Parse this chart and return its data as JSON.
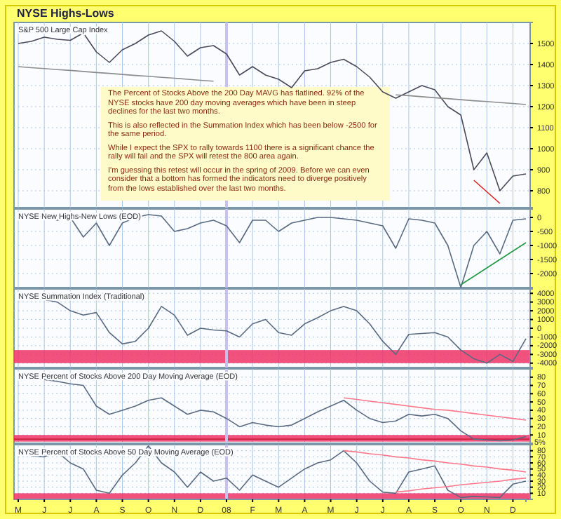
{
  "chart_data": [
    {
      "type": "line",
      "title": "NYSE Highs-Lows",
      "subtitle": "S&P 500 Large Cap Index",
      "categories": [
        null,
        null,
        null,
        null,
        null,
        null,
        null,
        null,
        null,
        null,
        null,
        null,
        null,
        null,
        null,
        null,
        null,
        null,
        null,
        null,
        null,
        null,
        null,
        null,
        null,
        null,
        null,
        null,
        null,
        null,
        null,
        null,
        null,
        null,
        null,
        null,
        null,
        null,
        null,
        null
      ],
      "ylim": [
        720,
        1600
      ],
      "yticks": [
        800,
        900,
        1000,
        1100,
        1200,
        1300,
        1400,
        1500
      ],
      "tick_labels": "y",
      "grid": true,
      "series": [
        {
          "color": "#4a4a5a",
          "values": [
            1500,
            1510,
            1530,
            1520,
            1515,
            1550,
            1460,
            1410,
            1470,
            1500,
            1540,
            1560,
            1510,
            1440,
            1480,
            1490,
            1450,
            1350,
            1390,
            1350,
            1330,
            1290,
            1370,
            1380,
            1410,
            1425,
            1390,
            1340,
            1270,
            1240,
            1270,
            1300,
            1280,
            1200,
            1160,
            900,
            980,
            800,
            870,
            880
          ]
        },
        {
          "color": "#8c8c8c",
          "values": [
            1390,
            1385,
            1381,
            1376,
            1372,
            1367,
            1362,
            1358,
            1353,
            1348,
            1344,
            1339,
            1335,
            1330,
            1325,
            1321,
            null,
            null,
            null,
            null,
            null,
            null,
            null,
            null,
            null,
            null,
            null,
            null,
            null,
            1256,
            1252,
            1247,
            1242,
            1238,
            1233,
            1228,
            1224,
            1219,
            1215,
            1210
          ]
        },
        {
          "color": "#dd2222",
          "values": [
            null,
            null,
            null,
            null,
            null,
            null,
            null,
            null,
            null,
            null,
            null,
            null,
            null,
            null,
            null,
            null,
            null,
            null,
            null,
            null,
            null,
            null,
            null,
            null,
            null,
            null,
            null,
            null,
            null,
            null,
            null,
            null,
            null,
            null,
            null,
            850,
            795,
            740,
            null,
            null
          ]
        }
      ],
      "annotations": [
        "The Percent of Stocks Above the 200 Day MAVG has flatlined. 92% of the NYSE stocks have 200 day moving averages which have been in steep declines for the last two months.",
        "This is also reflected in the Summation Index which has been below -2500 for the same period.",
        "While I expect the SPX to rally towards 1100 there is a significant chance the rally will fail and the SPX will retest the 800 area again.",
        "I'm guessing this retest will occur in the spring of 2009. Before we can even consider that a bottom has formed the indicators need to diverge positively from the lows established over the last two months."
      ]
    },
    {
      "type": "line",
      "title": "NYSE New Highs-New Lows (EOD)",
      "categories": [
        null,
        null,
        null,
        null,
        null,
        null,
        null,
        null,
        null,
        null,
        null,
        null,
        null,
        null,
        null,
        null,
        null,
        null,
        null,
        null,
        null,
        null,
        null,
        null,
        null,
        null,
        null,
        null,
        null,
        null,
        null,
        null,
        null,
        null,
        null,
        null,
        null,
        null,
        null,
        null
      ],
      "ylim": [
        -2500,
        300
      ],
      "yticks": [
        -2000,
        -1500,
        -1000,
        -500,
        0
      ],
      "tick_labels": "y",
      "grid": true,
      "series": [
        {
          "color": "#5a6a80",
          "values": [
            0,
            50,
            20,
            -100,
            0,
            -700,
            -200,
            -1000,
            -200,
            0,
            100,
            50,
            -500,
            -400,
            -200,
            -100,
            -300,
            -900,
            -100,
            -100,
            -500,
            -200,
            -100,
            0,
            0,
            -50,
            -100,
            -200,
            -300,
            -1100,
            -50,
            -100,
            -200,
            -1000,
            -2500,
            -1000,
            -500,
            -1300,
            -100,
            -50
          ]
        },
        {
          "color": "#229944",
          "values": [
            null,
            null,
            null,
            null,
            null,
            null,
            null,
            null,
            null,
            null,
            null,
            null,
            null,
            null,
            null,
            null,
            null,
            null,
            null,
            null,
            null,
            null,
            null,
            null,
            null,
            null,
            null,
            null,
            null,
            null,
            null,
            null,
            null,
            null,
            -2400,
            -2100,
            -1800,
            -1500,
            -1200,
            -900
          ]
        }
      ]
    },
    {
      "type": "line",
      "title": "NYSE Summation Index (Traditional)",
      "categories": [
        null,
        null,
        null,
        null,
        null,
        null,
        null,
        null,
        null,
        null,
        null,
        null,
        null,
        null,
        null,
        null,
        null,
        null,
        null,
        null,
        null,
        null,
        null,
        null,
        null,
        null,
        null,
        null,
        null,
        null,
        null,
        null,
        null,
        null,
        null,
        null,
        null,
        null,
        null,
        null
      ],
      "ylim": [
        -4500,
        4500
      ],
      "yticks": [
        -4000,
        -3000,
        -2000,
        -1000,
        0,
        1000,
        2000,
        3000,
        4000
      ],
      "tick_labels": "y",
      "grid": true,
      "series": [
        {
          "color": "#5a6a80",
          "values": [
            4000,
            3600,
            3300,
            3000,
            2000,
            1500,
            1800,
            -500,
            -1800,
            -1500,
            0,
            2500,
            1500,
            -800,
            0,
            -200,
            -300,
            -1000,
            500,
            1000,
            -500,
            -800,
            500,
            1200,
            2000,
            2500,
            2000,
            500,
            -1500,
            -3000,
            -700,
            -600,
            -500,
            -1000,
            -2500,
            -3500,
            -4000,
            -3000,
            -3800,
            -1200
          ]
        }
      ],
      "bands": [
        {
          "axis": "y",
          "from": -4000,
          "to": -2500,
          "color": "#ee3366"
        }
      ]
    },
    {
      "type": "line",
      "title": "NYSE Percent of Stocks Above 200 Day Moving Average (EOD)",
      "categories": [
        null,
        null,
        null,
        null,
        null,
        null,
        null,
        null,
        null,
        null,
        null,
        null,
        null,
        null,
        null,
        null,
        null,
        null,
        null,
        null,
        null,
        null,
        null,
        null,
        null,
        null,
        null,
        null,
        null,
        null,
        null,
        null,
        null,
        null,
        null,
        null,
        null,
        null,
        null,
        null
      ],
      "ylim": [
        0,
        90
      ],
      "yticks": [
        10,
        20,
        30,
        40,
        50,
        60,
        70,
        80
      ],
      "tick_labels": "y",
      "grid": true,
      "series": [
        {
          "color": "#5a6a80",
          "values": [
            80,
            78,
            77,
            75,
            72,
            70,
            45,
            35,
            40,
            45,
            52,
            55,
            45,
            35,
            40,
            38,
            30,
            20,
            25,
            22,
            20,
            22,
            30,
            38,
            45,
            52,
            40,
            30,
            25,
            27,
            35,
            33,
            35,
            30,
            15,
            5,
            4,
            3,
            4,
            8
          ]
        },
        {
          "color": "#ff7788",
          "values": [
            null,
            null,
            null,
            null,
            null,
            null,
            null,
            null,
            null,
            null,
            null,
            null,
            null,
            null,
            null,
            null,
            null,
            null,
            null,
            null,
            null,
            null,
            null,
            null,
            null,
            55,
            53,
            51,
            49,
            47,
            45,
            43,
            41,
            40,
            38,
            36,
            34,
            32,
            30,
            28
          ]
        }
      ],
      "bands": [
        {
          "axis": "y",
          "from": 2,
          "to": 10,
          "color": "#ee3366"
        }
      ],
      "ref_lines": [
        {
          "axis": "y",
          "value": 5,
          "label": "5%",
          "color": "#cc2244"
        }
      ]
    },
    {
      "type": "line",
      "title": "NYSE Percent of Stocks Above 50 Day Moving Average (EOD)",
      "categories": [
        "M",
        null,
        "J",
        null,
        "J",
        null,
        "A",
        null,
        "S",
        null,
        "O",
        null,
        "N",
        null,
        "D",
        null,
        "08",
        null,
        "F",
        null,
        "M",
        null,
        "A",
        null,
        "M",
        null,
        "J",
        null,
        "J",
        null,
        "A",
        null,
        "S",
        null,
        "O",
        null,
        "N",
        null,
        "D",
        null
      ],
      "ylim": [
        0,
        90
      ],
      "yticks": [
        10,
        20,
        30,
        40,
        50,
        60,
        70,
        80
      ],
      "grid": true,
      "series": [
        {
          "color": "#5a6a80",
          "values": [
            80,
            72,
            70,
            78,
            60,
            50,
            15,
            10,
            40,
            60,
            88,
            60,
            45,
            20,
            45,
            30,
            35,
            15,
            40,
            30,
            20,
            35,
            50,
            60,
            65,
            80,
            60,
            30,
            12,
            10,
            45,
            50,
            55,
            15,
            3,
            5,
            4,
            3,
            25,
            30
          ]
        },
        {
          "color": "#ff7788",
          "values": [
            null,
            null,
            null,
            null,
            null,
            null,
            null,
            null,
            null,
            null,
            null,
            null,
            null,
            null,
            null,
            null,
            null,
            null,
            null,
            null,
            null,
            null,
            null,
            null,
            null,
            80,
            78,
            75,
            73,
            70,
            68,
            65,
            63,
            60,
            58,
            55,
            53,
            50,
            48,
            45
          ]
        },
        {
          "color": "#ff7788",
          "values": [
            null,
            null,
            null,
            null,
            null,
            null,
            null,
            null,
            null,
            null,
            null,
            null,
            null,
            null,
            null,
            null,
            null,
            null,
            null,
            null,
            null,
            null,
            null,
            null,
            null,
            null,
            null,
            null,
            null,
            12,
            14,
            17,
            19,
            21,
            24,
            26,
            28,
            30,
            33,
            35
          ]
        }
      ],
      "bands": [
        {
          "axis": "y",
          "from": 0,
          "to": 10,
          "color": "#ee3366"
        }
      ],
      "ref_lines": [
        {
          "axis": "x",
          "value": "08",
          "color": "#c8c0f0"
        }
      ]
    }
  ]
}
